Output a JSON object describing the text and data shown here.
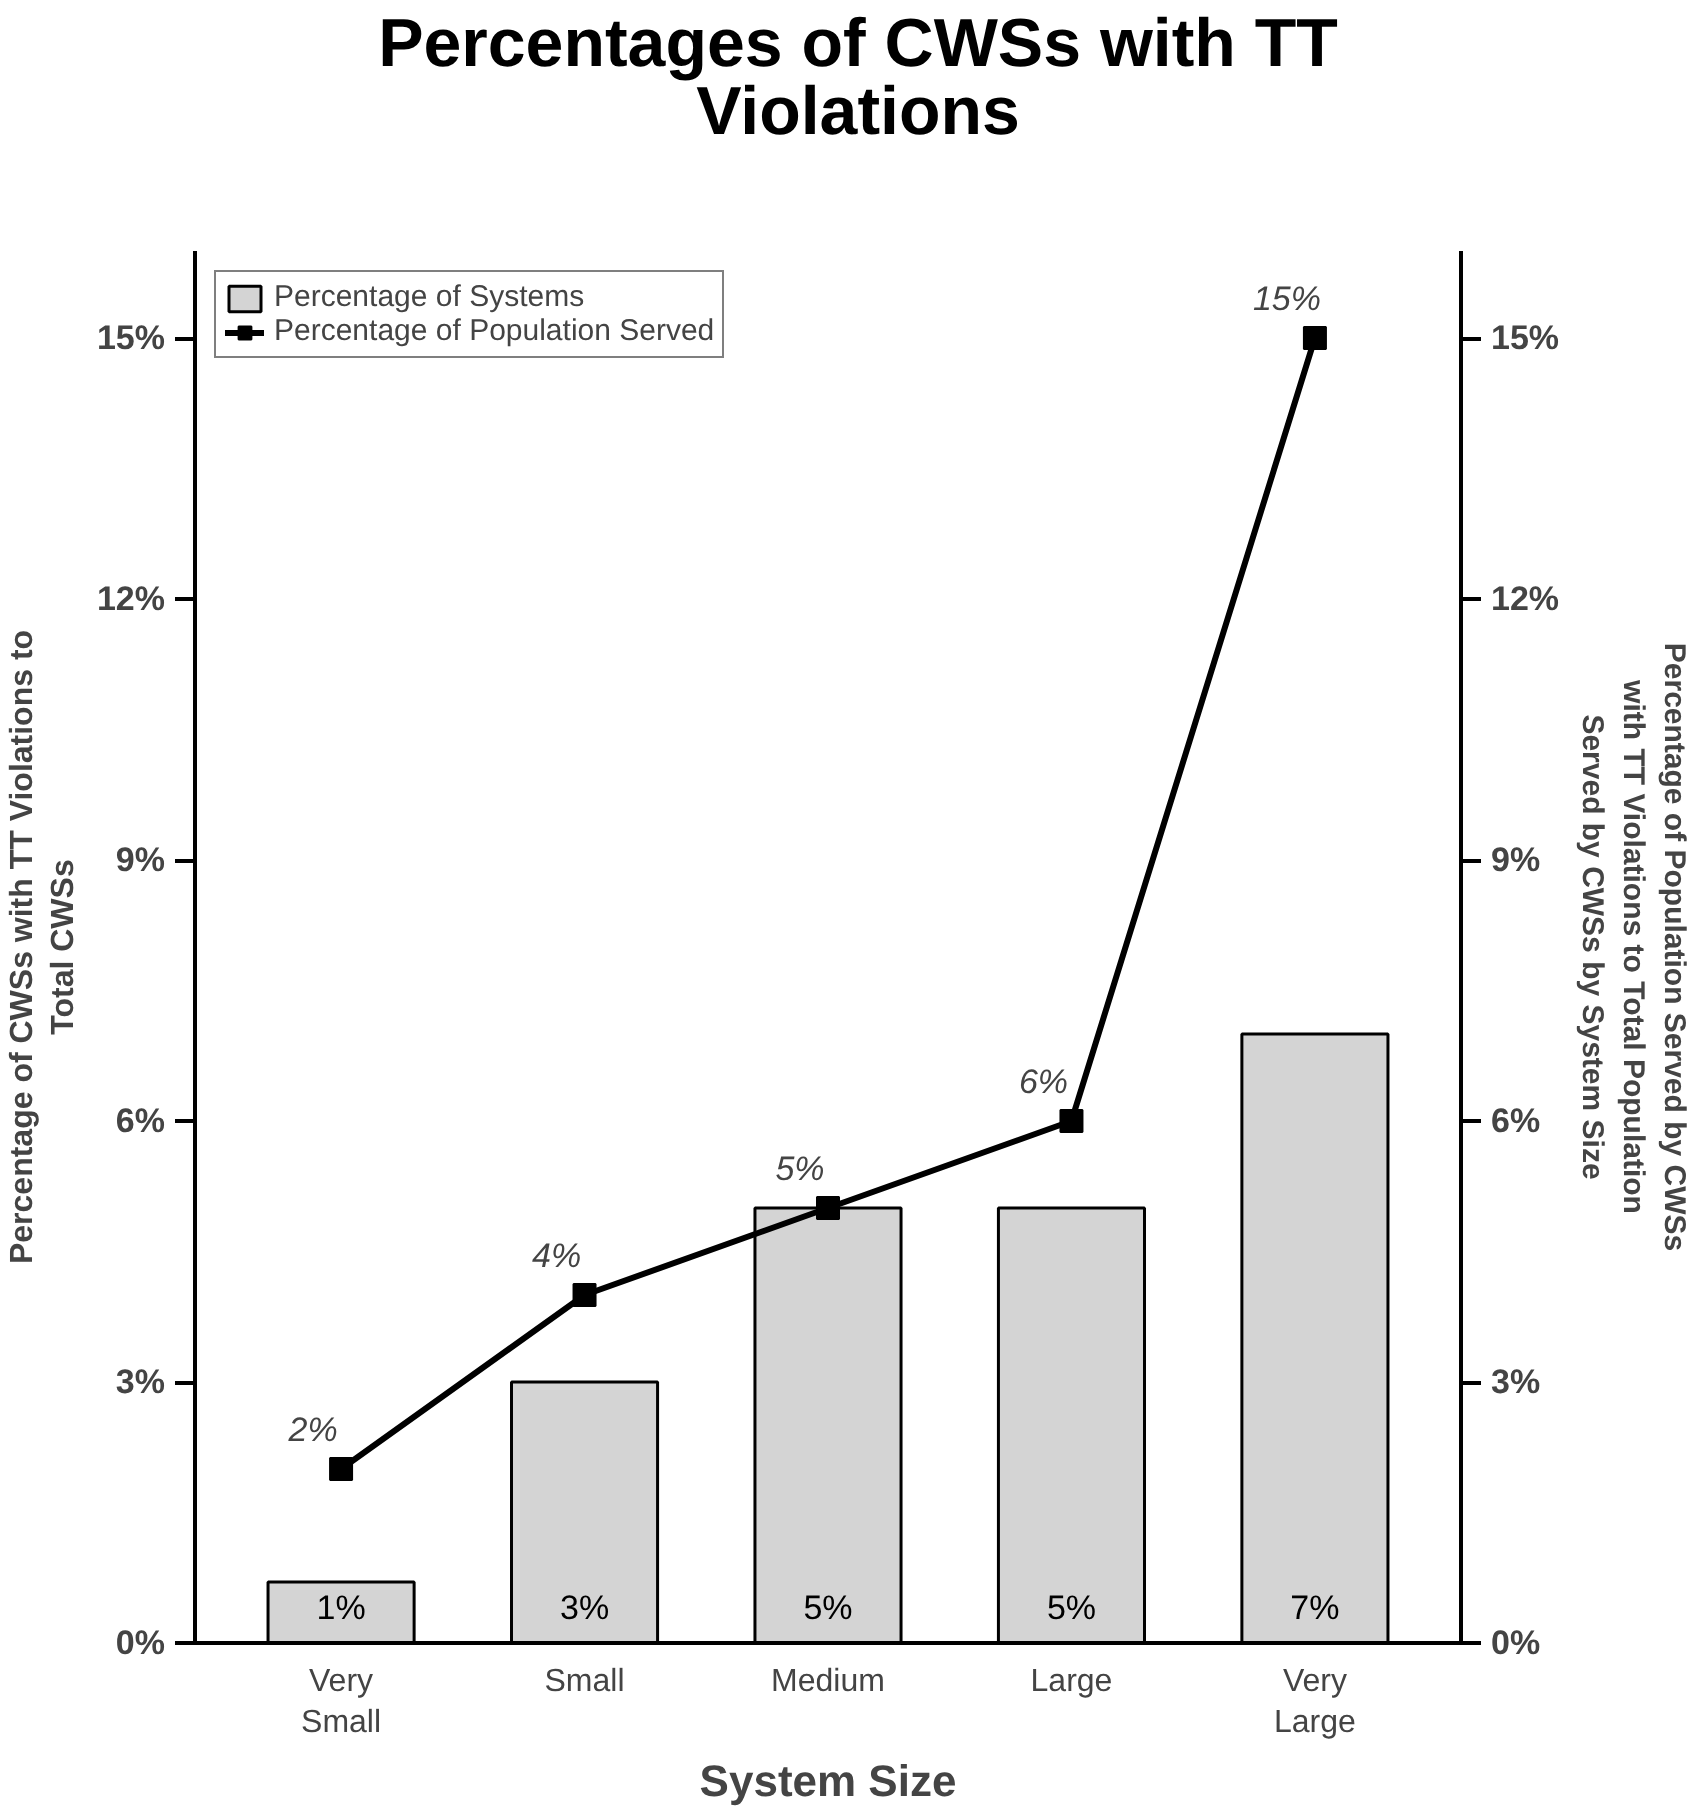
{
  "chart_data": {
    "type": "bar",
    "title": "Percentages of CWSs with TT\nViolations",
    "xlabel": "System Size",
    "ylabel": "Percentage of CWSs with TT Violations to\nTotal CWSs",
    "y2label": "Percentage of Population Served by CWSs\nwith TT Violations to Total Population\nServed by CWSs by System Size",
    "categories": [
      "Very\nSmall",
      "Small",
      "Medium",
      "Large",
      "Very\nLarge"
    ],
    "series": [
      {
        "name": "Percentage of Systems",
        "color": "#d4d4d4",
        "values": [
          0.7,
          3,
          5,
          5,
          7
        ],
        "value_labels": [
          "1%",
          "3%",
          "5%",
          "5%",
          "7%"
        ]
      },
      {
        "name": "Percentage of Population Served",
        "type": "line",
        "color": "#000000",
        "values": [
          2,
          4,
          5,
          6,
          15
        ],
        "value_labels": [
          "2%",
          "4%",
          "5%",
          "6%",
          "15%"
        ]
      }
    ],
    "ylim": [
      0,
      16
    ],
    "yticks": [
      {
        "value": 0,
        "label": "0%"
      },
      {
        "value": 3,
        "label": "3%"
      },
      {
        "value": 6,
        "label": "6%"
      },
      {
        "value": 9,
        "label": "9%"
      },
      {
        "value": 12,
        "label": "12%"
      },
      {
        "value": 15,
        "label": "15%"
      }
    ],
    "y2lim": [
      0,
      16
    ],
    "y2ticks": [
      {
        "value": 0,
        "label": "0%"
      },
      {
        "value": 3,
        "label": "3%"
      },
      {
        "value": 6,
        "label": "6%"
      },
      {
        "value": 9,
        "label": "9%"
      },
      {
        "value": 12,
        "label": "12%"
      },
      {
        "value": 15,
        "label": "15%"
      }
    ],
    "legend": "top left",
    "marker": "square",
    "grid": false
  }
}
